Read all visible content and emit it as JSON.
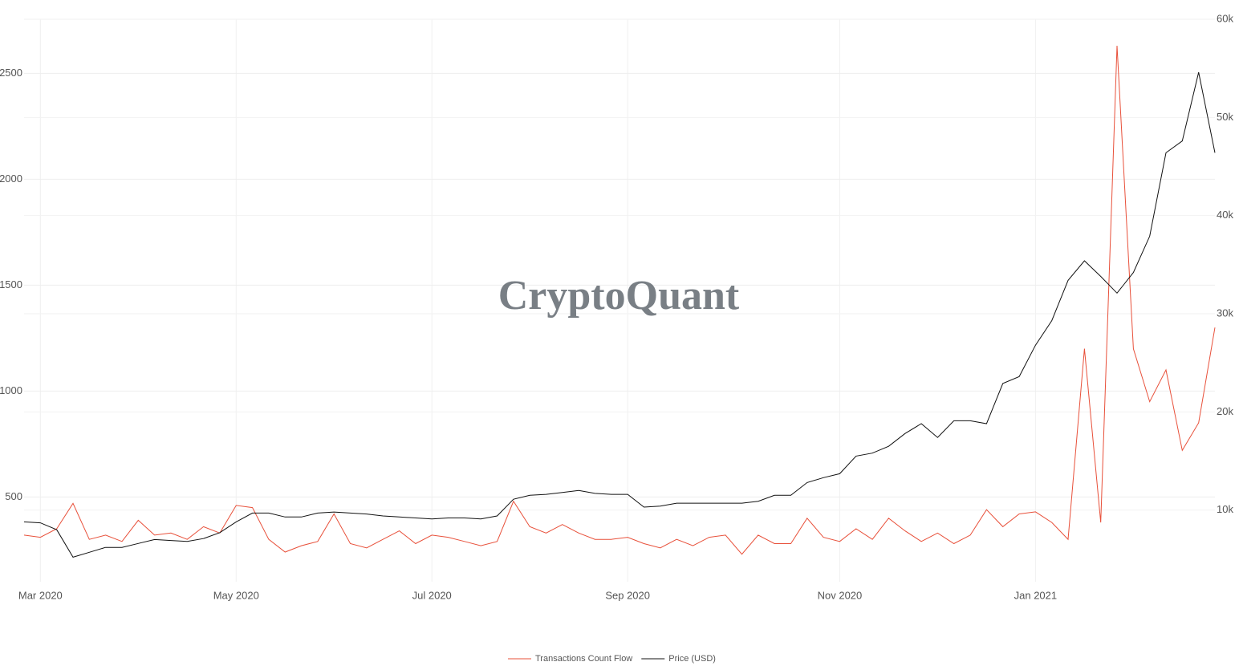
{
  "chart_data": {
    "type": "line",
    "watermark": "CryptoQuant",
    "categories": [
      null,
      "Mar 2020",
      null,
      null,
      null,
      null,
      null,
      null,
      null,
      null,
      null,
      null,
      null,
      "May 2020",
      null,
      null,
      null,
      null,
      null,
      null,
      null,
      null,
      null,
      null,
      null,
      "Jul 2020",
      null,
      null,
      null,
      null,
      null,
      null,
      null,
      null,
      null,
      null,
      null,
      "Sep 2020",
      null,
      null,
      null,
      null,
      null,
      null,
      null,
      null,
      null,
      null,
      null,
      null,
      "Nov 2020",
      null,
      null,
      null,
      null,
      null,
      null,
      null,
      null,
      null,
      null,
      null,
      "Jan 2021",
      null,
      null,
      null,
      null,
      null,
      null,
      null,
      null,
      null,
      null,
      null
    ],
    "series": [
      {
        "name": "Transactions Count Flow",
        "color": "#e8503a",
        "axis": "y",
        "values": [
          320,
          310,
          350,
          470,
          300,
          320,
          290,
          390,
          320,
          330,
          300,
          360,
          330,
          460,
          450,
          300,
          240,
          270,
          290,
          420,
          280,
          260,
          300,
          340,
          280,
          320,
          310,
          290,
          270,
          290,
          480,
          360,
          330,
          370,
          330,
          300,
          300,
          310,
          280,
          260,
          300,
          270,
          310,
          320,
          230,
          320,
          280,
          280,
          400,
          310,
          290,
          350,
          300,
          400,
          340,
          290,
          330,
          280,
          320,
          440,
          360,
          420,
          430,
          380,
          300,
          1200,
          380,
          2630,
          1200,
          950,
          1100,
          720,
          850,
          1300
        ]
      },
      {
        "name": "Price (USD)",
        "color": "#111111",
        "axis": "y2",
        "values": [
          8800,
          8700,
          8000,
          5200,
          5700,
          6200,
          6200,
          6600,
          7000,
          6900,
          6800,
          7100,
          7700,
          8800,
          9700,
          9700,
          9300,
          9300,
          9700,
          9800,
          9700,
          9600,
          9400,
          9300,
          9200,
          9100,
          9200,
          9200,
          9100,
          9400,
          11100,
          11500,
          11600,
          11800,
          12000,
          11700,
          11600,
          11600,
          10300,
          10400,
          10700,
          10700,
          10700,
          10700,
          10700,
          10900,
          11500,
          11500,
          12800,
          13300,
          13700,
          15500,
          15800,
          16500,
          17800,
          18800,
          17400,
          19100,
          19100,
          18800,
          22900,
          23600,
          26800,
          29300,
          33400,
          35400,
          33800,
          32100,
          34200,
          37900,
          46400,
          47600,
          54600,
          46400
        ]
      }
    ],
    "ylim": [
      100,
      2755
    ],
    "yticks": [
      500,
      1000,
      1500,
      2000,
      2500
    ],
    "y2lim": [
      2700,
      60000
    ],
    "y2ticks": [
      {
        "value": 10000,
        "label": "10k"
      },
      {
        "value": 20000,
        "label": "20k"
      },
      {
        "value": 30000,
        "label": "30k"
      },
      {
        "value": 40000,
        "label": "40k"
      },
      {
        "value": 50000,
        "label": "50k"
      },
      {
        "value": 60000,
        "label": "60k"
      }
    ],
    "grid": true,
    "legend": "bottom"
  }
}
